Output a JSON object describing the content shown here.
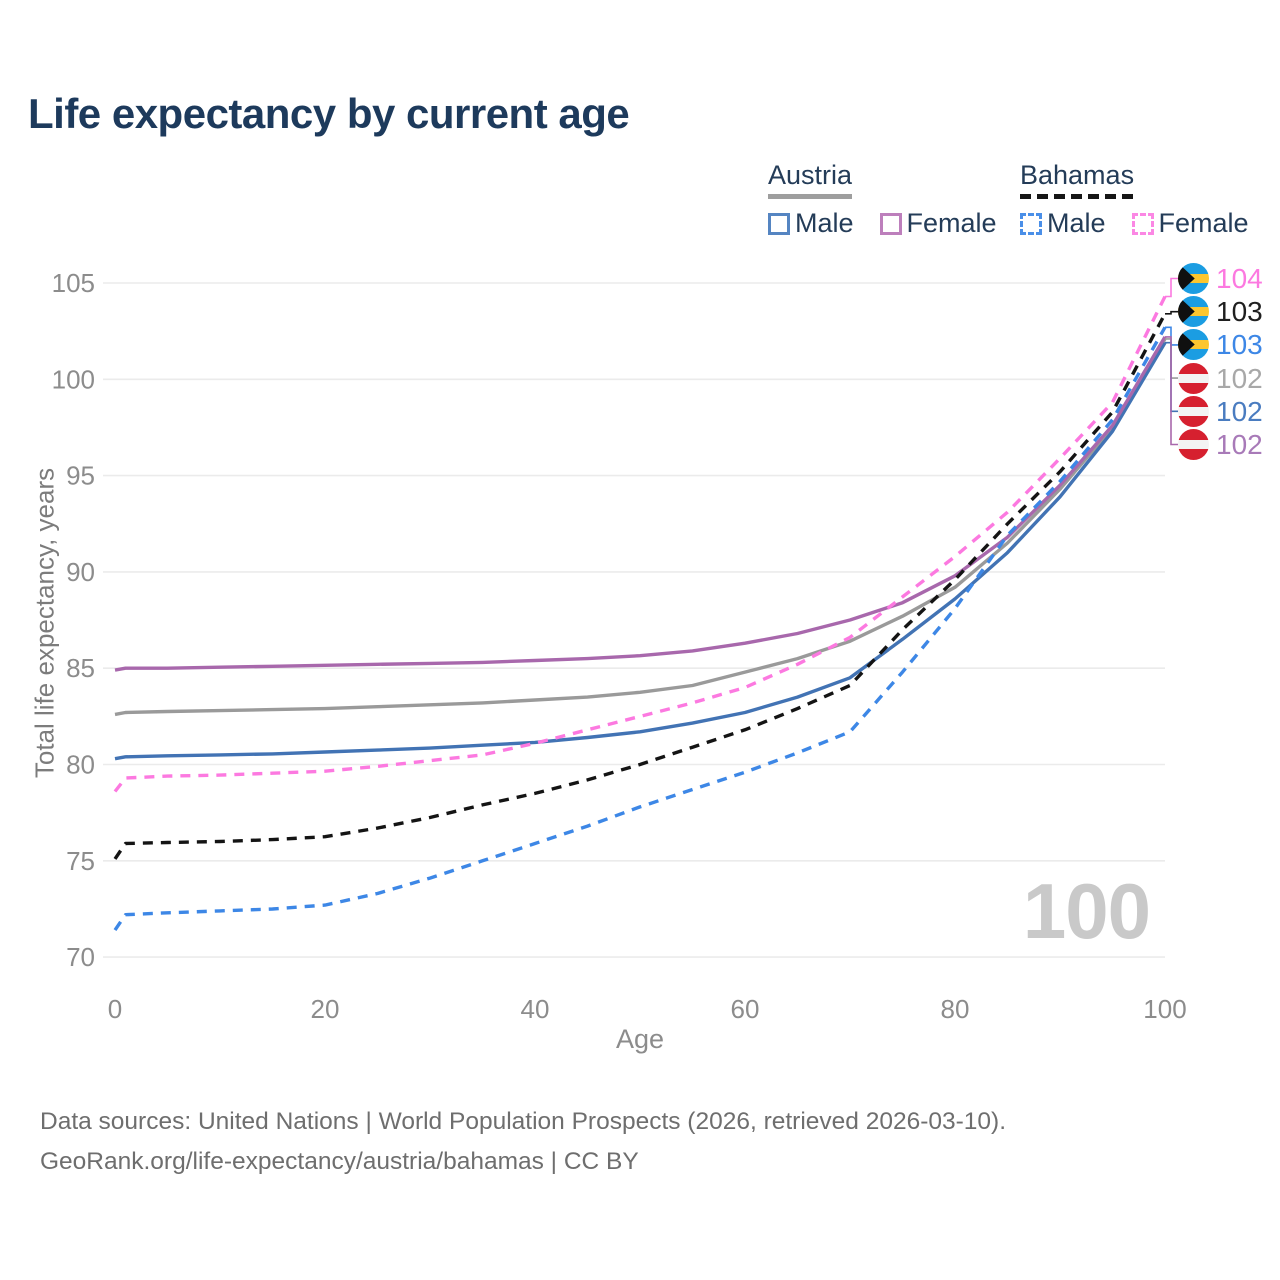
{
  "title": "Life expectancy by current age",
  "legend": {
    "groups": [
      {
        "label": "Austria",
        "items": [
          {
            "label": "Male"
          },
          {
            "label": "Female"
          }
        ]
      },
      {
        "label": "Bahamas",
        "items": [
          {
            "label": "Male"
          },
          {
            "label": "Female"
          }
        ]
      }
    ]
  },
  "chart_data": {
    "type": "line",
    "title": "Life expectancy by current age",
    "xlabel": "Age",
    "ylabel": "Total life expectancy, years",
    "xlim": [
      0,
      100
    ],
    "ylim": [
      70,
      105
    ],
    "x_ticks": [
      0,
      20,
      40,
      60,
      80,
      100
    ],
    "y_ticks": [
      70,
      75,
      80,
      85,
      90,
      95,
      100,
      105
    ],
    "grid": "horizontal",
    "legend_position": "top-right",
    "age_watermark": "100",
    "ages": [
      0,
      1,
      5,
      10,
      15,
      20,
      25,
      30,
      35,
      40,
      45,
      50,
      55,
      60,
      65,
      70,
      75,
      80,
      85,
      90,
      95,
      100
    ],
    "series": [
      {
        "name": "Austria",
        "country": "Austria",
        "sex": "Both",
        "style": "solid",
        "color": "#9a9a9a",
        "values": [
          82.6,
          82.7,
          82.75,
          82.8,
          82.85,
          82.9,
          83.0,
          83.1,
          83.2,
          83.35,
          83.5,
          83.75,
          84.1,
          84.8,
          85.5,
          86.4,
          87.7,
          89.2,
          91.5,
          94.3,
          97.5,
          102.1
        ]
      },
      {
        "name": "Austria Male",
        "country": "Austria",
        "sex": "Male",
        "style": "solid",
        "color": "#4273b4",
        "values": [
          80.3,
          80.4,
          80.45,
          80.5,
          80.55,
          80.65,
          80.75,
          80.85,
          81.0,
          81.15,
          81.4,
          81.7,
          82.15,
          82.7,
          83.5,
          84.5,
          86.5,
          88.6,
          91.0,
          93.9,
          97.3,
          101.9
        ]
      },
      {
        "name": "Austria Female",
        "country": "Austria",
        "sex": "Female",
        "style": "solid",
        "color": "#a868ac",
        "values": [
          84.9,
          85.0,
          85.0,
          85.05,
          85.1,
          85.15,
          85.2,
          85.25,
          85.3,
          85.4,
          85.5,
          85.65,
          85.9,
          86.3,
          86.8,
          87.5,
          88.4,
          89.8,
          91.8,
          94.5,
          97.6,
          102.2
        ]
      },
      {
        "name": "Bahamas Male",
        "country": "Bahamas",
        "sex": "Male",
        "style": "dashed",
        "color": "#3d87e6",
        "values": [
          71.4,
          72.2,
          72.3,
          72.4,
          72.5,
          72.7,
          73.3,
          74.1,
          75.0,
          75.9,
          76.8,
          77.8,
          78.7,
          79.6,
          80.6,
          81.7,
          84.8,
          88.1,
          91.9,
          94.7,
          97.9,
          102.7
        ]
      },
      {
        "name": "Bahamas",
        "country": "Bahamas",
        "sex": "Both",
        "style": "dashed",
        "color": "#141414",
        "values": [
          75.1,
          75.9,
          75.95,
          76.0,
          76.1,
          76.25,
          76.7,
          77.25,
          77.9,
          78.5,
          79.2,
          80.0,
          80.9,
          81.8,
          82.9,
          84.1,
          87.0,
          89.6,
          92.5,
          95.2,
          98.3,
          103.4
        ]
      },
      {
        "name": "Bahamas Female",
        "country": "Bahamas",
        "sex": "Female",
        "style": "dashed",
        "color": "#fc79e0",
        "values": [
          78.6,
          79.3,
          79.4,
          79.45,
          79.55,
          79.65,
          79.9,
          80.2,
          80.5,
          81.1,
          81.8,
          82.5,
          83.2,
          84.0,
          85.2,
          86.6,
          88.7,
          90.8,
          93.1,
          95.9,
          98.8,
          104.3
        ]
      }
    ]
  },
  "end_labels": [
    {
      "flag": "bahamas",
      "series": "Bahamas Female",
      "value": "104",
      "color": "#fc79e0"
    },
    {
      "flag": "bahamas",
      "series": "Bahamas",
      "value": "103",
      "color": "#1f1f1f"
    },
    {
      "flag": "bahamas",
      "series": "Bahamas Male",
      "value": "103",
      "color": "#3d87e6"
    },
    {
      "flag": "austria",
      "series": "Austria",
      "value": "102",
      "color": "#a8a8a8"
    },
    {
      "flag": "austria",
      "series": "Austria Male",
      "value": "102",
      "color": "#4a7cc0"
    },
    {
      "flag": "austria",
      "series": "Austria Female",
      "value": "102",
      "color": "#a87ab8"
    }
  ],
  "footer": {
    "line1": "Data sources: United Nations | World Population Prospects (2026, retrieved 2026-03-10).",
    "line2": "GeoRank.org/life-expectancy/austria/bahamas | CC BY"
  }
}
